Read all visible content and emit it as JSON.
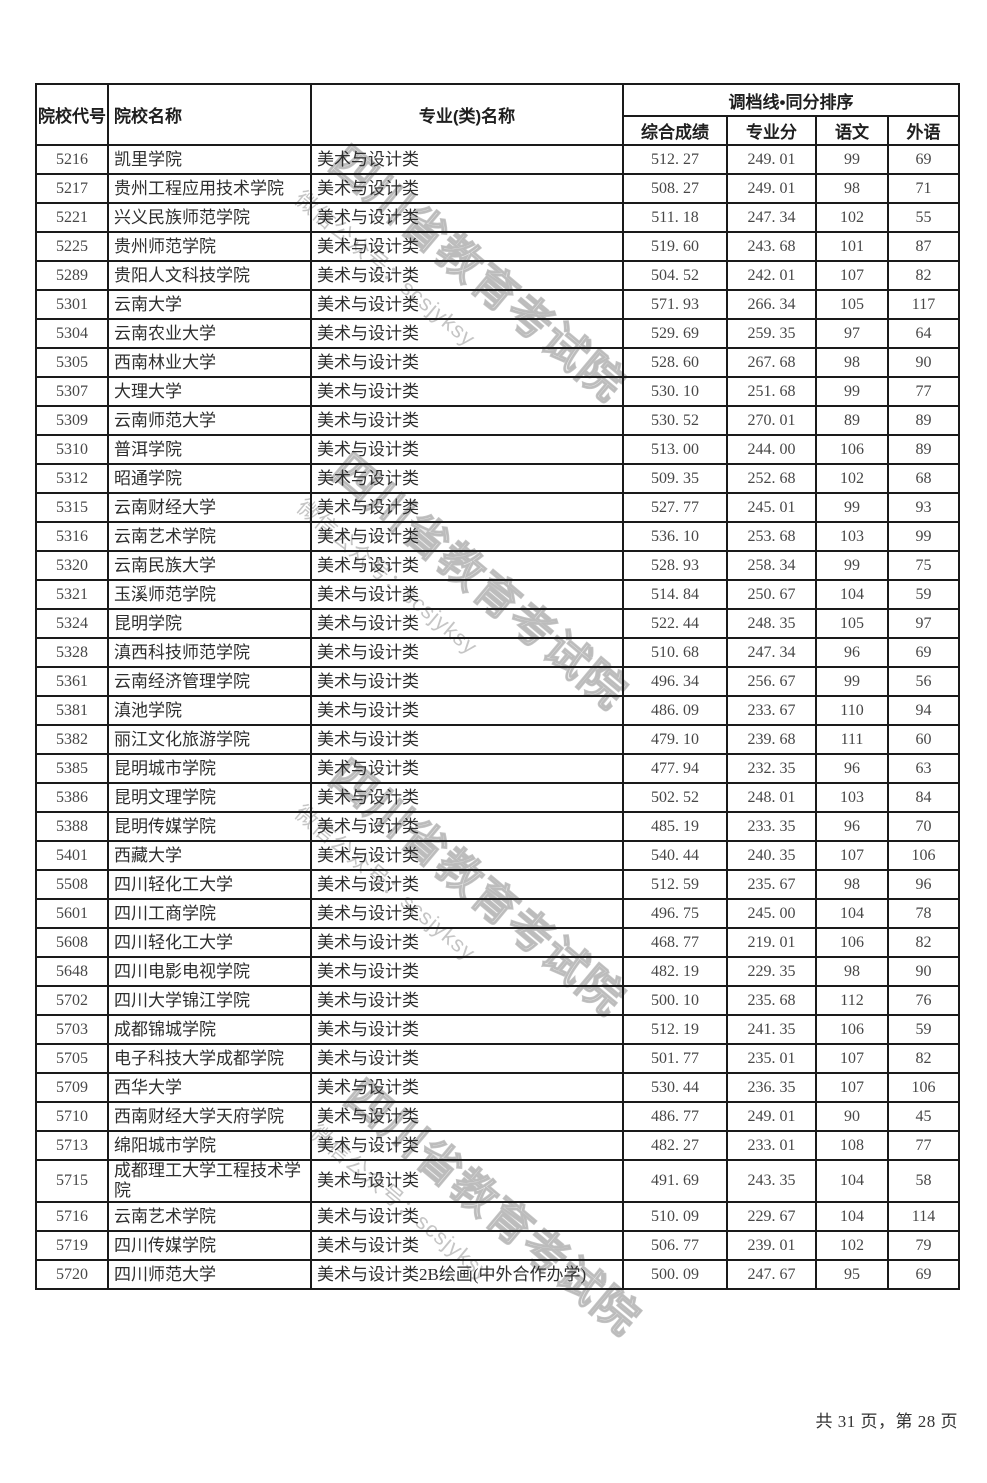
{
  "watermark": {
    "big_text": "四川省教育考试院",
    "small_text": "微信公众号：scsjyksy"
  },
  "footer": {
    "page_indicator": "共 31 页，第 28 页"
  },
  "table": {
    "headers": {
      "school_code": "院校代号",
      "school_name": "院校名称",
      "major_name": "专业(类)名称",
      "score_group": "调档线•同分排序",
      "sub_headers": [
        "综合成绩",
        "专业分",
        "语文",
        "外语"
      ]
    },
    "column_names": [
      "school-code",
      "school-name",
      "major-name",
      "composite-score",
      "major-score",
      "chinese-score",
      "foreign-lang-score"
    ],
    "rows": [
      [
        "5216",
        "凯里学院",
        "美术与设计类",
        "512. 27",
        "249. 01",
        "99",
        "69"
      ],
      [
        "5217",
        "贵州工程应用技术学院",
        "美术与设计类",
        "508. 27",
        "249. 01",
        "98",
        "71"
      ],
      [
        "5221",
        "兴义民族师范学院",
        "美术与设计类",
        "511. 18",
        "247. 34",
        "102",
        "55"
      ],
      [
        "5225",
        "贵州师范学院",
        "美术与设计类",
        "519. 60",
        "243. 68",
        "101",
        "87"
      ],
      [
        "5289",
        "贵阳人文科技学院",
        "美术与设计类",
        "504. 52",
        "242. 01",
        "107",
        "82"
      ],
      [
        "5301",
        "云南大学",
        "美术与设计类",
        "571. 93",
        "266. 34",
        "105",
        "117"
      ],
      [
        "5304",
        "云南农业大学",
        "美术与设计类",
        "529. 69",
        "259. 35",
        "97",
        "64"
      ],
      [
        "5305",
        "西南林业大学",
        "美术与设计类",
        "528. 60",
        "267. 68",
        "98",
        "90"
      ],
      [
        "5307",
        "大理大学",
        "美术与设计类",
        "530. 10",
        "251. 68",
        "99",
        "77"
      ],
      [
        "5309",
        "云南师范大学",
        "美术与设计类",
        "530. 52",
        "270. 01",
        "89",
        "89"
      ],
      [
        "5310",
        "普洱学院",
        "美术与设计类",
        "513. 00",
        "244. 00",
        "106",
        "89"
      ],
      [
        "5312",
        "昭通学院",
        "美术与设计类",
        "509. 35",
        "252. 68",
        "102",
        "68"
      ],
      [
        "5315",
        "云南财经大学",
        "美术与设计类",
        "527. 77",
        "245. 01",
        "99",
        "93"
      ],
      [
        "5316",
        "云南艺术学院",
        "美术与设计类",
        "536. 10",
        "253. 68",
        "103",
        "99"
      ],
      [
        "5320",
        "云南民族大学",
        "美术与设计类",
        "528. 93",
        "258. 34",
        "99",
        "75"
      ],
      [
        "5321",
        "玉溪师范学院",
        "美术与设计类",
        "514. 84",
        "250. 67",
        "104",
        "59"
      ],
      [
        "5324",
        "昆明学院",
        "美术与设计类",
        "522. 44",
        "248. 35",
        "105",
        "97"
      ],
      [
        "5328",
        "滇西科技师范学院",
        "美术与设计类",
        "510. 68",
        "247. 34",
        "96",
        "69"
      ],
      [
        "5361",
        "云南经济管理学院",
        "美术与设计类",
        "496. 34",
        "256. 67",
        "99",
        "56"
      ],
      [
        "5381",
        "滇池学院",
        "美术与设计类",
        "486. 09",
        "233. 67",
        "110",
        "94"
      ],
      [
        "5382",
        "丽江文化旅游学院",
        "美术与设计类",
        "479. 10",
        "239. 68",
        "111",
        "60"
      ],
      [
        "5385",
        "昆明城市学院",
        "美术与设计类",
        "477. 94",
        "232. 35",
        "96",
        "63"
      ],
      [
        "5386",
        "昆明文理学院",
        "美术与设计类",
        "502. 52",
        "248. 01",
        "103",
        "84"
      ],
      [
        "5388",
        "昆明传媒学院",
        "美术与设计类",
        "485. 19",
        "233. 35",
        "96",
        "70"
      ],
      [
        "5401",
        "西藏大学",
        "美术与设计类",
        "540. 44",
        "240. 35",
        "107",
        "106"
      ],
      [
        "5508",
        "四川轻化工大学",
        "美术与设计类",
        "512. 59",
        "235. 67",
        "98",
        "96"
      ],
      [
        "5601",
        "四川工商学院",
        "美术与设计类",
        "496. 75",
        "245. 00",
        "104",
        "78"
      ],
      [
        "5608",
        "四川轻化工大学",
        "美术与设计类",
        "468. 77",
        "219. 01",
        "106",
        "82"
      ],
      [
        "5648",
        "四川电影电视学院",
        "美术与设计类",
        "482. 19",
        "229. 35",
        "98",
        "90"
      ],
      [
        "5702",
        "四川大学锦江学院",
        "美术与设计类",
        "500. 10",
        "235. 68",
        "112",
        "76"
      ],
      [
        "5703",
        "成都锦城学院",
        "美术与设计类",
        "512. 19",
        "241. 35",
        "106",
        "59"
      ],
      [
        "5705",
        "电子科技大学成都学院",
        "美术与设计类",
        "501. 77",
        "235. 01",
        "107",
        "82"
      ],
      [
        "5709",
        "西华大学",
        "美术与设计类",
        "530. 44",
        "236. 35",
        "107",
        "106"
      ],
      [
        "5710",
        "西南财经大学天府学院",
        "美术与设计类",
        "486. 77",
        "249. 01",
        "90",
        "45"
      ],
      [
        "5713",
        "绵阳城市学院",
        "美术与设计类",
        "482. 27",
        "233. 01",
        "108",
        "77"
      ],
      [
        "5715",
        "成都理工大学工程技术学院",
        "美术与设计类",
        "491. 69",
        "243. 35",
        "104",
        "58"
      ],
      [
        "5716",
        "云南艺术学院",
        "美术与设计类",
        "510. 09",
        "229. 67",
        "104",
        "114"
      ],
      [
        "5719",
        "四川传媒学院",
        "美术与设计类",
        "506. 77",
        "239. 01",
        "102",
        "79"
      ],
      [
        "5720",
        "四川师范大学",
        "美术与设计类2B绘画(中外合作办学)",
        "500. 09",
        "247. 67",
        "95",
        "69"
      ]
    ]
  }
}
